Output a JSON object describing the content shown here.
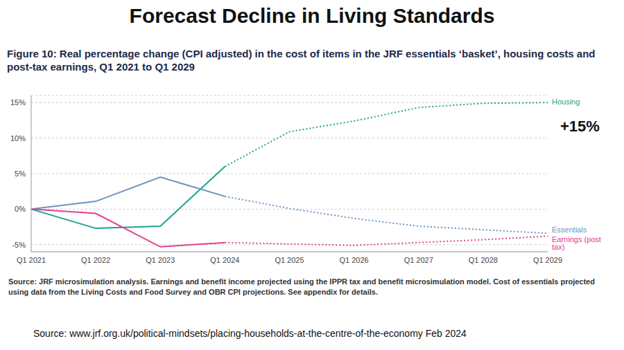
{
  "header": {
    "title": "Forecast Decline in Living Standards"
  },
  "chart_data": {
    "type": "line",
    "title": "Figure 10: Real percentage change (CPI adjusted) in the cost of items in the JRF essentials ‘basket’, housing costs and post-tax earnings, Q1 2021 to Q1 2029",
    "categories": [
      "Q1 2021",
      "Q1 2022",
      "Q1 2023",
      "Q1 2024",
      "Q1 2025",
      "Q1 2026",
      "Q1 2027",
      "Q1 2028",
      "Q1 2029"
    ],
    "series": [
      {
        "name": "Housing",
        "color": "#1aa38c",
        "line_style": "solid",
        "values": [
          0,
          -2.7,
          -2.4,
          6.0,
          null,
          null,
          null,
          null,
          null
        ]
      },
      {
        "name": "Housing",
        "color": "#1aa38c",
        "line_style": "dotted",
        "values": [
          null,
          null,
          null,
          6.0,
          10.9,
          12.4,
          14.3,
          14.9,
          15.0
        ]
      },
      {
        "name": "Essentials",
        "color": "#6b93bf",
        "line_style": "solid",
        "values": [
          0,
          1.1,
          4.5,
          1.8,
          null,
          null,
          null,
          null,
          null
        ]
      },
      {
        "name": "Essentials",
        "color": "#6b93bf",
        "line_style": "dotted",
        "values": [
          null,
          null,
          null,
          1.8,
          0.1,
          -1.3,
          -2.4,
          -2.9,
          -3.4
        ]
      },
      {
        "name": "Earnings (post tax)",
        "color": "#e2408f",
        "line_style": "solid",
        "values": [
          0,
          -0.6,
          -5.3,
          -4.7,
          null,
          null,
          null,
          null,
          null
        ]
      },
      {
        "name": "Earnings (post tax)",
        "color": "#e2408f",
        "line_style": "dotted",
        "values": [
          null,
          null,
          null,
          -4.7,
          -4.9,
          -5.1,
          -4.7,
          -4.3,
          -3.8
        ]
      }
    ],
    "ylim": [
      -6,
      16
    ],
    "yticks": [
      {
        "value": -5,
        "label": "-5%"
      },
      {
        "value": 0,
        "label": "0%"
      },
      {
        "value": 5,
        "label": "5%"
      },
      {
        "value": 10,
        "label": "10%"
      },
      {
        "value": 15,
        "label": "15%"
      }
    ],
    "grid": true,
    "annotation": "+15%",
    "source_note": "Source: JRF microsimulation analysis. Earnings and benefit income projected using the IPPR tax and benefit microsimulation model. Cost of essentials projected using data from the Living Costs and Food Survey and OBR CPI projections. See appendix for details."
  },
  "footer": {
    "source": "Source: www.jrf.org.uk/political-mindsets/placing-households-at-the-centre-of-the-economy Feb 2024"
  }
}
